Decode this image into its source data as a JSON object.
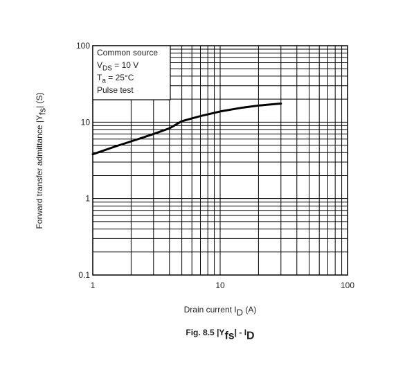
{
  "chart_data": {
    "type": "line",
    "log_x": true,
    "log_y": true,
    "grid": true,
    "x": [
      1,
      1.5,
      2,
      3,
      4,
      5,
      7,
      10,
      15,
      20,
      30
    ],
    "series": [
      {
        "color": "#000000",
        "values": [
          3.8,
          4.8,
          5.6,
          7.0,
          8.3,
          10.3,
          12.0,
          13.8,
          15.5,
          16.5,
          17.5
        ]
      }
    ],
    "xlim": [
      1,
      100
    ],
    "xticks": [
      1,
      10,
      100
    ],
    "ylim": [
      0.1,
      100
    ],
    "yticks": [
      0.1,
      1,
      10,
      100
    ],
    "annotations": [
      [
        {
          "text": "Common source"
        }
      ],
      [
        {
          "text": "V"
        },
        {
          "text": "DS",
          "sub": true
        },
        {
          "text": " = 10 V"
        }
      ],
      [
        {
          "text": "T"
        },
        {
          "text": "a",
          "sub": true
        },
        {
          "text": " = 25°C"
        }
      ],
      [
        {
          "text": "Pulse test"
        }
      ]
    ],
    "x_label": [
      {
        "text": "Drain current   I"
      },
      {
        "text": "D",
        "sub": true
      },
      {
        "text": "   (A)"
      }
    ],
    "y_label": [
      {
        "text": "Forward transfer admittance   |Y"
      },
      {
        "text": "fs",
        "sub": true
      },
      {
        "text": "|    (S)"
      }
    ],
    "caption": [
      {
        "text": "Fig. 8.5     |Y"
      },
      {
        "text": "fs",
        "sub": true
      },
      {
        "text": "| - I"
      },
      {
        "text": "D",
        "sub": true
      }
    ]
  }
}
